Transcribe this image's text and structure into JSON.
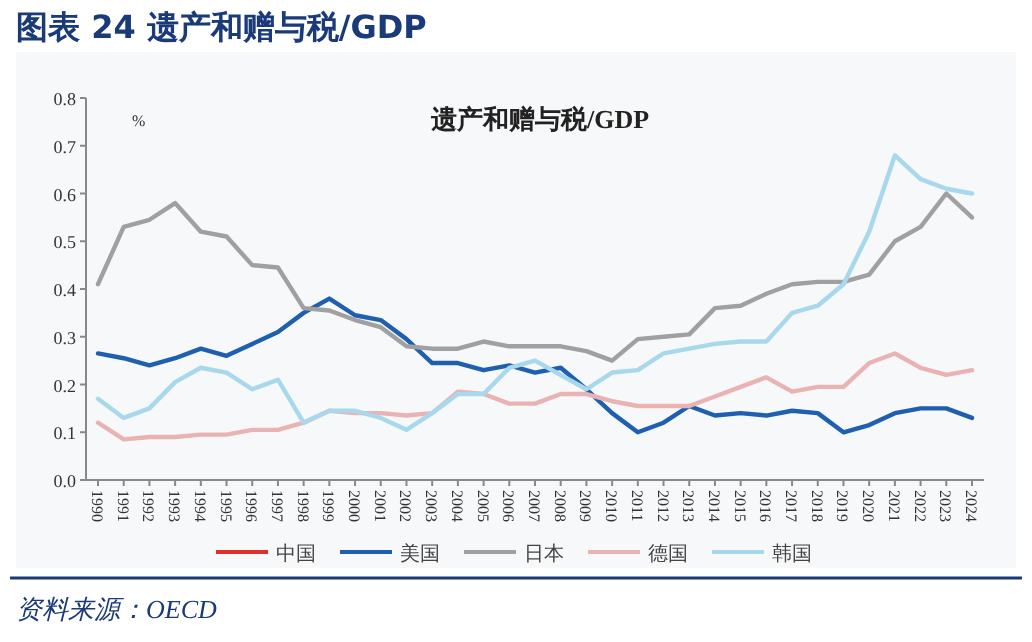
{
  "chart_data": {
    "type": "line",
    "title": "图表 24    遗产和赠与税/GDP",
    "subtitle": "遗产和赠与税/GDP",
    "ylabel": "%",
    "annotations": [
      "资料来源：OECD"
    ],
    "categories": [
      "1990",
      "1991",
      "1992",
      "1993",
      "1994",
      "1995",
      "1996",
      "1997",
      "1998",
      "1999",
      "2000",
      "2001",
      "2002",
      "2003",
      "2004",
      "2005",
      "2006",
      "2007",
      "2008",
      "2009",
      "2010",
      "2011",
      "2012",
      "2013",
      "2014",
      "2015",
      "2016",
      "2017",
      "2018",
      "2019",
      "2020",
      "2021",
      "2022",
      "2023",
      "2024"
    ],
    "series": [
      {
        "name": "中国",
        "color": "#e0302a",
        "values": [
          null,
          null,
          null,
          null,
          null,
          null,
          null,
          null,
          null,
          null,
          null,
          null,
          null,
          null,
          null,
          null,
          null,
          null,
          null,
          null,
          null,
          null,
          null,
          null,
          null,
          null,
          null,
          null,
          null,
          null,
          null,
          null,
          null,
          null,
          null
        ]
      },
      {
        "name": "美国",
        "color": "#1f5fb0",
        "values": [
          0.265,
          0.255,
          0.24,
          0.255,
          0.275,
          0.26,
          0.285,
          0.31,
          0.35,
          0.38,
          0.345,
          0.335,
          0.295,
          0.245,
          0.245,
          0.23,
          0.24,
          0.225,
          0.235,
          0.19,
          0.14,
          0.1,
          0.12,
          0.155,
          0.135,
          0.14,
          0.135,
          0.145,
          0.14,
          0.1,
          0.115,
          0.14,
          0.15,
          0.15,
          0.13
        ]
      },
      {
        "name": "日本",
        "color": "#a0a0a0",
        "values": [
          0.41,
          0.53,
          0.545,
          0.58,
          0.52,
          0.51,
          0.45,
          0.445,
          0.36,
          0.355,
          0.335,
          0.32,
          0.28,
          0.275,
          0.275,
          0.29,
          0.28,
          0.28,
          0.28,
          0.27,
          0.25,
          0.295,
          0.3,
          0.305,
          0.36,
          0.365,
          0.39,
          0.41,
          0.415,
          0.415,
          0.43,
          0.5,
          0.53,
          0.6,
          0.55
        ]
      },
      {
        "name": "德国",
        "color": "#eab3b3",
        "values": [
          0.12,
          0.085,
          0.09,
          0.09,
          0.095,
          0.095,
          0.105,
          0.105,
          0.12,
          0.145,
          0.14,
          0.14,
          0.135,
          0.14,
          0.185,
          0.18,
          0.16,
          0.16,
          0.18,
          0.18,
          0.165,
          0.155,
          0.155,
          0.155,
          0.175,
          0.195,
          0.215,
          0.185,
          0.195,
          0.195,
          0.245,
          0.265,
          0.235,
          0.22,
          0.23
        ]
      },
      {
        "name": "韩国",
        "color": "#a7d8ec",
        "values": [
          0.17,
          0.13,
          0.15,
          0.205,
          0.235,
          0.225,
          0.19,
          0.21,
          0.12,
          0.145,
          0.145,
          0.13,
          0.105,
          0.14,
          0.18,
          0.18,
          0.235,
          0.25,
          0.22,
          0.19,
          0.225,
          0.23,
          0.265,
          0.275,
          0.285,
          0.29,
          0.29,
          0.35,
          0.365,
          0.41,
          0.52,
          0.68,
          0.63,
          0.61,
          0.6
        ]
      }
    ],
    "ylim": [
      0,
      0.8
    ],
    "yticks": [
      {
        "value": 0,
        "label": "0.0"
      },
      0.1,
      0.2,
      0.3,
      0.4,
      0.5,
      0.6,
      0.7,
      0.8
    ],
    "legend": "bottom"
  }
}
